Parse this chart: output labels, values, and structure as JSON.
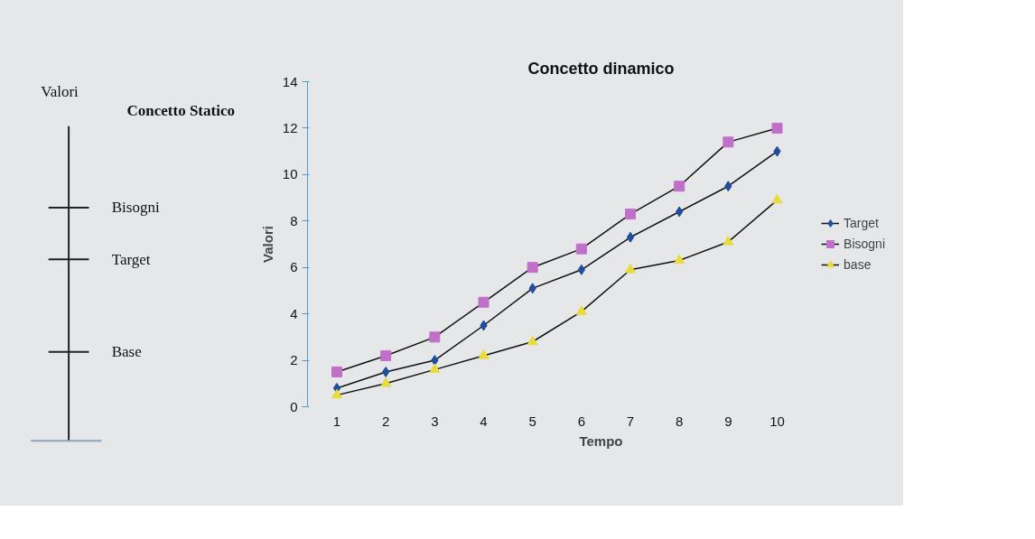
{
  "chart_data": [
    {
      "type": "other",
      "title": "Concetto Statico",
      "ylabel": "Valori",
      "annotations": [
        "Bisogni",
        "Target",
        "Base"
      ]
    },
    {
      "type": "line",
      "title": "Concetto dinamico",
      "xlabel": "Tempo",
      "ylabel": "Valori",
      "categories": [
        "1",
        "2",
        "3",
        "4",
        "5",
        "6",
        "7",
        "8",
        "9",
        "10"
      ],
      "series": [
        {
          "name": "Target",
          "color": "#1f4e9c",
          "marker": "diamond",
          "values": [
            0.8,
            1.5,
            2.0,
            3.5,
            5.1,
            5.9,
            7.3,
            8.4,
            9.5,
            11.0
          ]
        },
        {
          "name": "Bisogni",
          "color": "#c070c8",
          "marker": "square",
          "values": [
            1.5,
            2.2,
            3.0,
            4.5,
            6.0,
            6.8,
            8.3,
            9.5,
            11.4,
            12.0
          ]
        },
        {
          "name": "base",
          "color": "#e8dc3c",
          "marker": "triangle",
          "values": [
            0.5,
            1.0,
            1.6,
            2.2,
            2.8,
            4.1,
            5.9,
            6.3,
            7.1,
            8.9
          ]
        }
      ],
      "ylim": [
        0,
        14
      ],
      "yticks": [
        0,
        2,
        4,
        6,
        8,
        10,
        12,
        14
      ],
      "legend": "right"
    }
  ]
}
